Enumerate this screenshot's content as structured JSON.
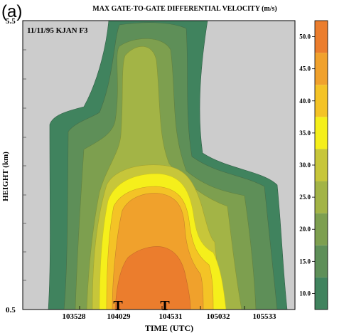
{
  "panel_label": "(a)",
  "chart_data": {
    "type": "heatmap",
    "title": "MAX GATE-TO-GATE DIFFERENTIAL VELOCITY (m/s)",
    "annotation": "11/11/95 KJAN F3",
    "xlabel": "TIME (UTC)",
    "ylabel": "HEIGHT (km)",
    "x_ticks": [
      "103528",
      "104029",
      "104531",
      "105032",
      "105533"
    ],
    "y_ticks": [
      "0.5",
      "5.5"
    ],
    "ylim": [
      0.5,
      5.5
    ],
    "markers": [
      {
        "label": "T",
        "time": "104029"
      },
      {
        "label": "T",
        "time": "104531"
      }
    ],
    "colorbar": {
      "ticks": [
        "10.0",
        "15.0",
        "20.0",
        "25.0",
        "30.0",
        "35.0",
        "40.0",
        "45.0",
        "50.0"
      ],
      "levels": [
        7.5,
        12.5,
        17.5,
        22.5,
        27.5,
        32.5,
        37.5,
        42.5,
        47.5,
        52.5
      ],
      "colors": [
        "#40835e",
        "#5e8f58",
        "#7d9f4f",
        "#a3b446",
        "#c7c63a",
        "#f5ef1b",
        "#f4c326",
        "#f0a12c",
        "#eb7d2d",
        "#e0402a"
      ]
    },
    "contours": [
      {
        "min_value": 10.0,
        "height_max_km": 5.5
      },
      {
        "min_value": 15.0,
        "height_max_km": 5.5
      },
      {
        "min_value": 20.0,
        "height_max_km": 5.2
      },
      {
        "min_value": 25.0,
        "height_max_km": 4.6
      },
      {
        "min_value": 30.0,
        "height_max_km": 3.0
      },
      {
        "min_value": 35.0,
        "height_max_km": 2.8
      },
      {
        "min_value": 40.0,
        "height_max_km": 2.6
      },
      {
        "min_value": 45.0,
        "height_max_km": 1.4
      }
    ],
    "background_color": "#cccccc"
  }
}
